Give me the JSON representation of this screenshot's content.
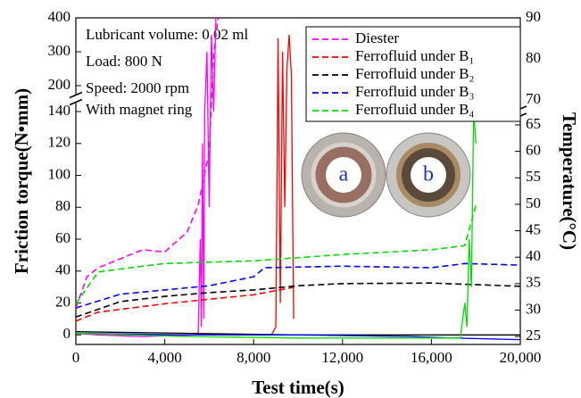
{
  "chart_data": {
    "type": "line",
    "x_label": "Test time(s)",
    "y_label": "Friction torque(N•mm)",
    "y2_label": "Temperature(°C)",
    "annotations": [
      "Lubricant volume: 0.02 ml",
      "Load: 800 N",
      "Speed: 2000 rpm",
      "With magnet ring"
    ],
    "insets": [
      "a",
      "b"
    ],
    "xlim": [
      0,
      20000
    ],
    "xticks": [
      0,
      {
        "value": 4000,
        "label": "4,000"
      },
      {
        "value": 8000,
        "label": "8,000"
      },
      {
        "value": 12000,
        "label": "12,000"
      },
      {
        "value": 16000,
        "label": "16,000"
      },
      {
        "value": 20000,
        "label": "20,000"
      }
    ],
    "ylim": [
      -6,
      400
    ],
    "ybreak": [
      140,
      200
    ],
    "yticks": [
      0,
      20,
      40,
      60,
      80,
      100,
      120,
      140,
      200,
      300,
      400
    ],
    "y2lim": [
      23.5,
      90
    ],
    "y2break": [
      65,
      70
    ],
    "y2ticks": [
      25,
      30,
      35,
      40,
      45,
      50,
      55,
      60,
      65,
      70,
      80,
      90
    ],
    "legend": "upper right",
    "series": [
      {
        "name": "Diester",
        "color": "#ff00ff",
        "axis": "y2",
        "x": [
          0,
          500,
          1000,
          2000,
          3000,
          4000,
          5000,
          5500,
          6000,
          6200,
          6400
        ],
        "values": [
          30.4,
          36.3,
          38,
          39.7,
          41.4,
          41,
          44.7,
          49.8,
          59.9,
          81.3,
          90
        ],
        "torque_x": [
          0,
          1000,
          3000,
          5500,
          5600,
          5650,
          5700,
          5750,
          5800,
          5900,
          6000,
          6100,
          6200,
          6300
        ],
        "torque": [
          1,
          0,
          -1,
          0,
          60,
          5,
          120,
          10,
          140,
          300,
          80,
          350,
          140,
          400
        ]
      },
      {
        "name": "Ferrofluid under B₁",
        "color": "#ff0000",
        "axis": "y2",
        "x": [
          0,
          1000,
          4000,
          8000,
          9800
        ],
        "values": [
          27.9,
          29.6,
          31.2,
          32.9,
          34.3
        ],
        "torque_x": [
          0,
          3000,
          8800,
          9000,
          9100,
          9200,
          9300,
          9400,
          9500,
          9600,
          9700,
          9800
        ],
        "torque": [
          1,
          0,
          0,
          5,
          340,
          20,
          300,
          80,
          250,
          350,
          230,
          10
        ]
      },
      {
        "name": "Ferrofluid under B₂",
        "color": "#000000",
        "axis": "y2",
        "x": [
          0,
          2000,
          4000,
          6000,
          8000,
          10000,
          12000,
          16000,
          20000
        ],
        "values": [
          28.7,
          31.6,
          32.6,
          33.3,
          33.8,
          34.6,
          35,
          35.1,
          34.5
        ],
        "torque_x": [
          0,
          5000,
          10000,
          15000,
          20000
        ],
        "torque": [
          2,
          1,
          0,
          0,
          0
        ]
      },
      {
        "name": "Ferrofluid under B₃",
        "color": "#0000ff",
        "axis": "y2",
        "x": [
          0,
          2000,
          4000,
          6000,
          8000,
          8500,
          12000,
          16000,
          17500,
          20000
        ],
        "values": [
          30.4,
          33,
          33.8,
          34.6,
          36.3,
          38,
          38.3,
          38,
          38.8,
          38.5
        ],
        "torque_x": [
          0,
          5000,
          10000,
          15000,
          17000,
          20000
        ],
        "torque": [
          1,
          0,
          0,
          -1,
          -2,
          -3
        ]
      },
      {
        "name": "Ferrofluid under B₄",
        "color": "#00dd00",
        "axis": "y2",
        "x": [
          0,
          1000,
          3000,
          4000,
          8000,
          12000,
          16000,
          17500,
          18000
        ],
        "values": [
          31.2,
          37.2,
          38.3,
          38.8,
          39.3,
          40.5,
          41.4,
          42.2,
          49.8
        ],
        "torque_x": [
          0,
          5000,
          10000,
          15000,
          17300,
          17500,
          17600,
          17700,
          17800,
          17900,
          18000
        ],
        "torque": [
          1,
          -1,
          -2,
          -2,
          -2,
          20,
          5,
          60,
          30,
          140,
          120
        ]
      }
    ]
  }
}
